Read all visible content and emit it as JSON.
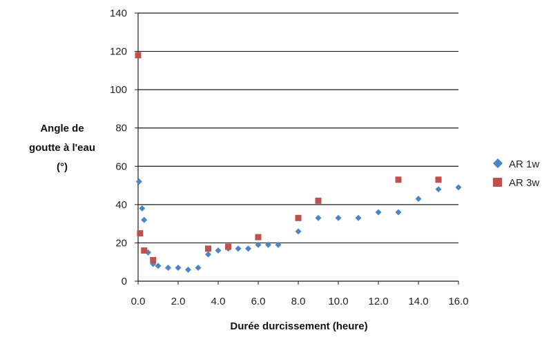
{
  "chart_data": {
    "type": "scatter",
    "title": "",
    "xlabel": "Durée durcissement (heure)",
    "ylabel_lines": [
      "Angle de",
      "goutte à l'eau",
      "(°)"
    ],
    "xlim": [
      0,
      16
    ],
    "ylim": [
      0,
      140
    ],
    "x_ticks": [
      0,
      2,
      4,
      6,
      8,
      10,
      12,
      14,
      16
    ],
    "x_tick_labels": [
      "0.0",
      "2.0",
      "4.0",
      "6.0",
      "8.0",
      "10.0",
      "12.0",
      "14.0",
      "16.0"
    ],
    "y_ticks": [
      0,
      20,
      40,
      60,
      80,
      100,
      120,
      140
    ],
    "y_tick_labels": [
      "0",
      "20",
      "40",
      "60",
      "80",
      "100",
      "120",
      "140"
    ],
    "grid": "horizontal",
    "legend_position": "right",
    "series": [
      {
        "name": "AR 1w",
        "marker": "diamond",
        "color": "#4a86c5",
        "points": [
          [
            0.05,
            52
          ],
          [
            0.2,
            38
          ],
          [
            0.3,
            32
          ],
          [
            0.5,
            15
          ],
          [
            0.75,
            9
          ],
          [
            1.0,
            8
          ],
          [
            1.5,
            7
          ],
          [
            2.0,
            7
          ],
          [
            2.5,
            6
          ],
          [
            3.0,
            7
          ],
          [
            3.5,
            14
          ],
          [
            4.0,
            16
          ],
          [
            4.5,
            17
          ],
          [
            5.0,
            17
          ],
          [
            5.5,
            17
          ],
          [
            6.0,
            19
          ],
          [
            6.5,
            19
          ],
          [
            7.0,
            19
          ],
          [
            8.0,
            26
          ],
          [
            9.0,
            33
          ],
          [
            10.0,
            33
          ],
          [
            11.0,
            33
          ],
          [
            12.0,
            36
          ],
          [
            13.0,
            36
          ],
          [
            14.0,
            43
          ],
          [
            15.0,
            48
          ],
          [
            16.0,
            49
          ]
        ]
      },
      {
        "name": "AR 3w",
        "marker": "square",
        "color": "#c0504d",
        "points": [
          [
            0.0,
            118
          ],
          [
            0.1,
            25
          ],
          [
            0.3,
            16
          ],
          [
            0.75,
            11
          ],
          [
            3.5,
            17
          ],
          [
            4.5,
            18
          ],
          [
            6.0,
            23
          ],
          [
            8.0,
            33
          ],
          [
            9.0,
            42
          ],
          [
            13.0,
            53
          ],
          [
            15.0,
            53
          ]
        ]
      }
    ]
  }
}
